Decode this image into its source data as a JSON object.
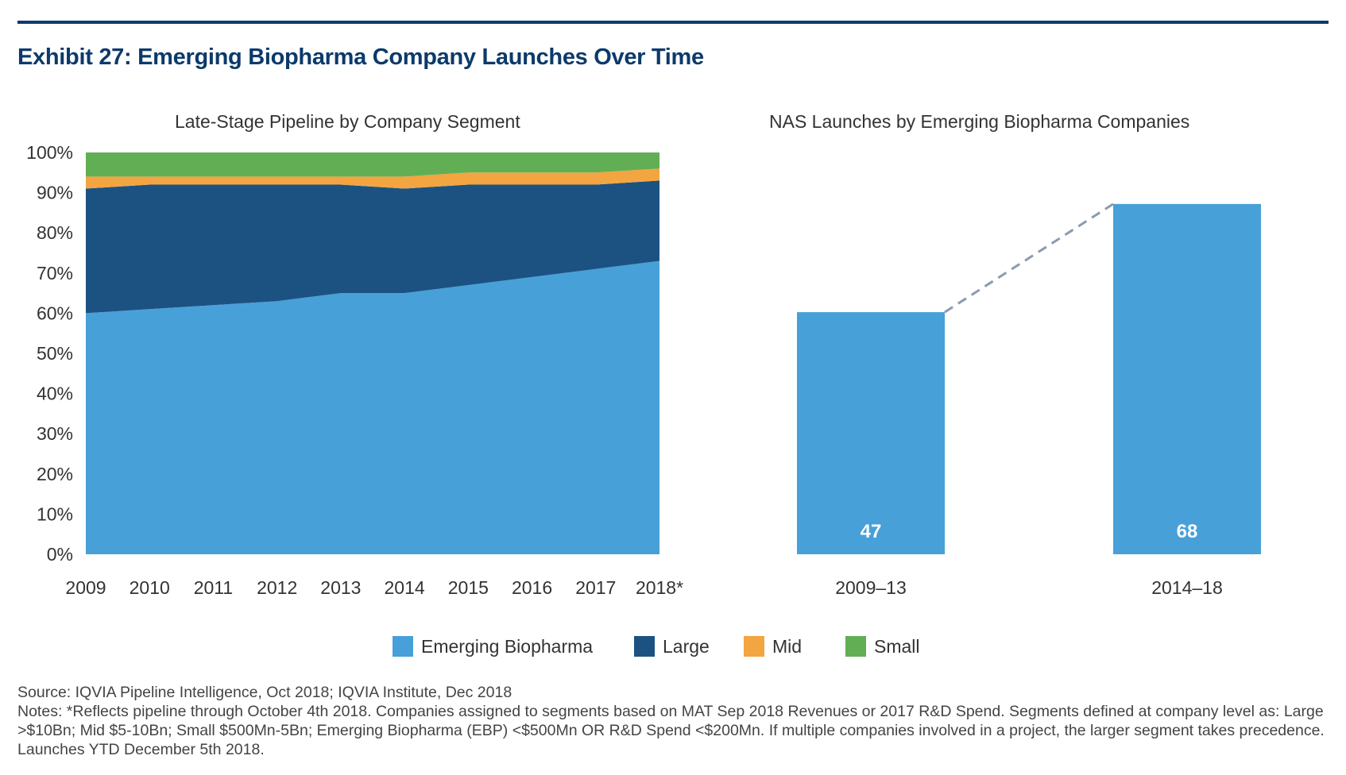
{
  "exhibit_title": "Exhibit 27: Emerging Biopharma Company Launches Over Time",
  "chart_data": [
    {
      "type": "area",
      "title": "Late-Stage Pipeline by Company Segment",
      "stacked": true,
      "x": [
        "2009",
        "2010",
        "2011",
        "2012",
        "2013",
        "2014",
        "2015",
        "2016",
        "2017",
        "2018*"
      ],
      "y_ticks": [
        "0%",
        "10%",
        "20%",
        "30%",
        "40%",
        "50%",
        "60%",
        "70%",
        "80%",
        "90%",
        "100%"
      ],
      "ylim": [
        0,
        100
      ],
      "series": [
        {
          "name": "Emerging Biopharma",
          "color": "#48a0d8",
          "values": [
            60,
            61,
            62,
            63,
            65,
            65,
            67,
            69,
            71,
            73
          ]
        },
        {
          "name": "Large",
          "color": "#1c5282",
          "values": [
            31,
            31,
            30,
            29,
            27,
            26,
            25,
            23,
            21,
            20
          ]
        },
        {
          "name": "Mid",
          "color": "#f2a541",
          "values": [
            3,
            2,
            2,
            2,
            2,
            3,
            3,
            3,
            3,
            3
          ]
        },
        {
          "name": "Small",
          "color": "#62ae55",
          "values": [
            6,
            6,
            6,
            6,
            6,
            6,
            5,
            5,
            5,
            4
          ]
        }
      ]
    },
    {
      "type": "bar",
      "title": "NAS Launches by Emerging Biopharma Companies",
      "categories": [
        "2009–13",
        "2014–18"
      ],
      "values": [
        47,
        68
      ],
      "data_labels": [
        "47",
        "68"
      ],
      "color": "#48a0d8",
      "connector": "dashed",
      "connector_color": "#8a9bb0",
      "ylim": [
        0,
        78
      ]
    }
  ],
  "legend": [
    {
      "label": "Emerging Biopharma",
      "color": "#48a0d8"
    },
    {
      "label": "Large",
      "color": "#1c5282"
    },
    {
      "label": "Mid",
      "color": "#f2a541"
    },
    {
      "label": "Small",
      "color": "#62ae55"
    }
  ],
  "source": {
    "line1": "Source: IQVIA Pipeline Intelligence, Oct 2018; IQVIA Institute, Dec 2018",
    "line2": "Notes: *Reflects pipeline through October 4th 2018. Companies assigned to segments based on MAT Sep 2018 Revenues or 2017 R&D Spend. Segments defined at company level as: Large >$10Bn; Mid $5-10Bn; Small $500Mn-5Bn; Emerging Biopharma (EBP) <$500Mn OR R&D Spend <$200Mn. If multiple companies involved in a project, the larger segment takes precedence. Launches YTD December 5th 2018."
  }
}
